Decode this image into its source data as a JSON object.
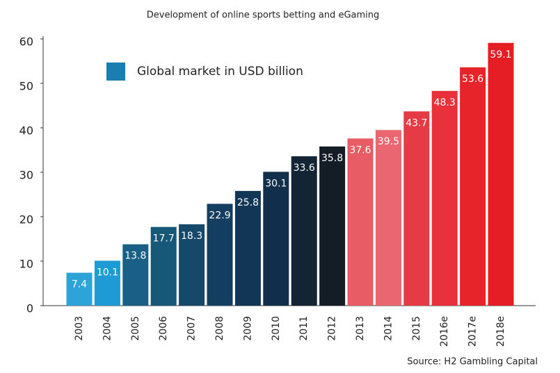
{
  "chart_data": {
    "type": "bar",
    "title": "Development of online sports betting and eGaming",
    "source": "Source: H2 Gambling Capital",
    "categories": [
      "2003",
      "2004",
      "2005",
      "2006",
      "2007",
      "2008",
      "2009",
      "2010",
      "2011",
      "2012",
      "2013",
      "2014",
      "2015",
      "2016e",
      "2017e",
      "2018e"
    ],
    "series": [
      {
        "name": "Global market in USD billion",
        "color": "#1a7fb0",
        "colors": [
          "#2ea3d8",
          "#1e9bd4",
          "#1a5f86",
          "#175778",
          "#16486a",
          "#143e5f",
          "#123656",
          "#112e4a",
          "#132535",
          "#141d26",
          "#e85c66",
          "#ea6670",
          "#e63a44",
          "#e8313a",
          "#e8242b",
          "#e51e25"
        ],
        "values": [
          7.4,
          10.1,
          13.8,
          17.7,
          18.3,
          22.9,
          25.8,
          30.1,
          33.6,
          35.8,
          37.6,
          39.5,
          43.7,
          48.3,
          53.6,
          59.1
        ]
      }
    ],
    "ylim": [
      0,
      60
    ],
    "yticks": [
      0,
      10,
      20,
      30,
      40,
      50,
      60
    ],
    "grid": false
  }
}
